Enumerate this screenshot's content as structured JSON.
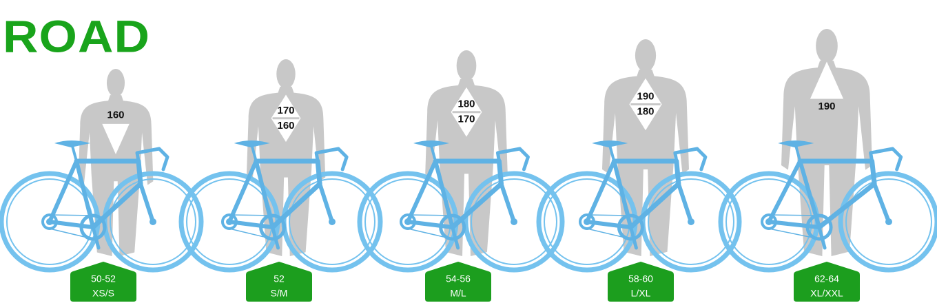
{
  "title": "ROAD",
  "sizes": [
    {
      "heights": [
        "160"
      ],
      "frame": "50-52",
      "size": "XS/S"
    },
    {
      "heights": [
        "170",
        "160"
      ],
      "frame": "52",
      "size": "S/M"
    },
    {
      "heights": [
        "180",
        "170"
      ],
      "frame": "54-56",
      "size": "M/L"
    },
    {
      "heights": [
        "190",
        "180"
      ],
      "frame": "58-60",
      "size": "L/XL"
    },
    {
      "heights": [
        "190"
      ],
      "frame": "62-64",
      "size": "XL/XXL"
    }
  ]
}
